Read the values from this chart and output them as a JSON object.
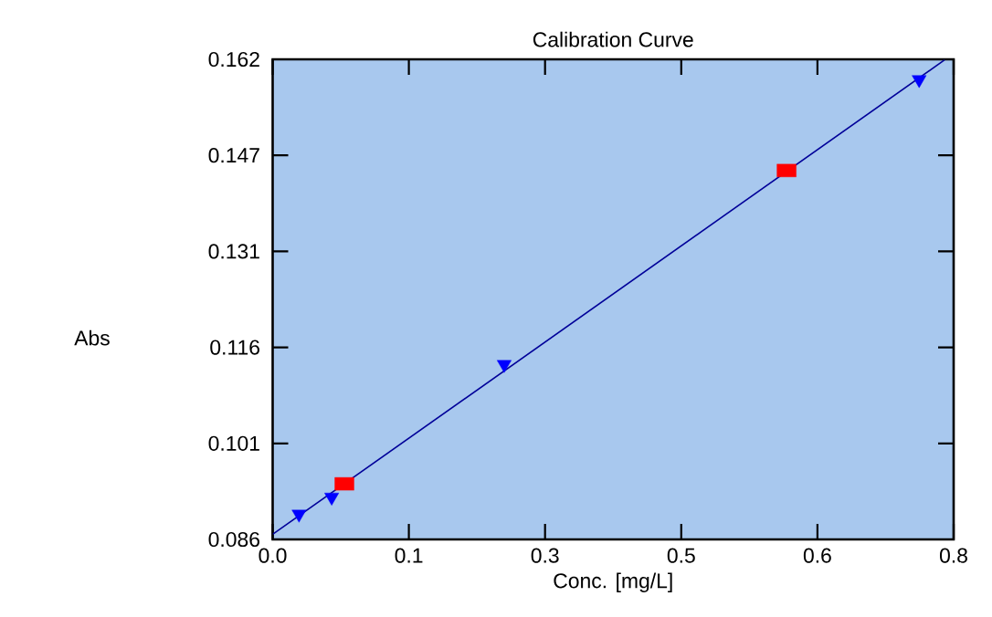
{
  "chart_data": {
    "type": "scatter",
    "title": "Calibration Curve",
    "xlabel": "Conc. [mg/L]",
    "ylabel": "Abs",
    "xlim": [
      0,
      0.75
    ],
    "ylim": [
      0.0858,
      0.1618
    ],
    "xticks": [
      {
        "value": 0,
        "label": "0.0"
      },
      {
        "value": 0.15,
        "label": "0.1"
      },
      {
        "value": 0.3,
        "label": "0.3"
      },
      {
        "value": 0.45,
        "label": "0.5"
      },
      {
        "value": 0.6,
        "label": "0.6"
      },
      {
        "value": 0.75,
        "label": "0.8"
      }
    ],
    "yticks": [
      {
        "value": 0.0858,
        "label": "0.086"
      },
      {
        "value": 0.101,
        "label": "0.101"
      },
      {
        "value": 0.1162,
        "label": "0.116"
      },
      {
        "value": 0.1314,
        "label": "0.131"
      },
      {
        "value": 0.1466,
        "label": "0.147"
      },
      {
        "value": 0.1618,
        "label": "0.162"
      }
    ],
    "grid": false,
    "series": [
      {
        "type": "line",
        "color": "#000099",
        "marker": "none",
        "line_style": "solid",
        "x": [
          0,
          0.74
        ],
        "values": [
          0.0866,
          0.1617
        ]
      },
      {
        "color": "#0000ff",
        "marker": "triangle",
        "x": [
          0.029,
          0.065,
          0.255,
          0.712
        ],
        "values": [
          0.0898,
          0.0925,
          0.1135,
          0.1586
        ]
      },
      {
        "color": "#ff0000",
        "marker": "square",
        "x": [
          0.079,
          0.566
        ],
        "values": [
          0.0946,
          0.1442
        ]
      }
    ]
  }
}
